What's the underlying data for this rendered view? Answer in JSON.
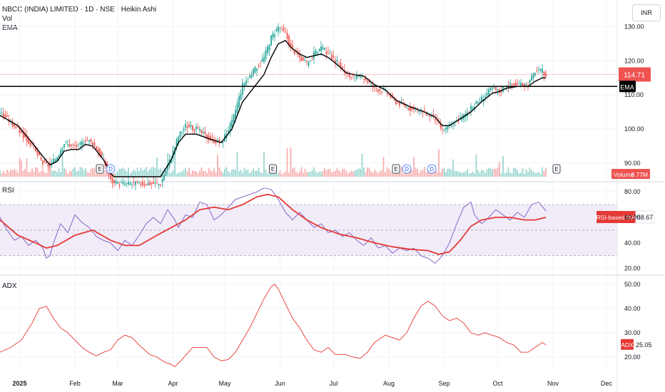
{
  "header": {
    "title": "NBCC (INDIA) LIMITED · 1D · NSE · Heikin Ashi",
    "vol_label": "Vol",
    "ema_label": "EMA",
    "currency": "INR"
  },
  "colors": {
    "up": "#26a69a",
    "down": "#ef5350",
    "ema": "#000000",
    "rsi": "#7e57c2",
    "rsi_ma": "#e53935",
    "adx": "#e53935",
    "rsi_band": "#ede7f6"
  },
  "chart_data": [
    {
      "type": "candlestick",
      "name": "price",
      "yaxis_ticks": [
        90,
        100,
        110,
        120,
        130
      ],
      "ylim": [
        86,
        132
      ],
      "xlim": [
        0,
        306
      ],
      "x_ticks": [
        {
          "label": "2025",
          "x": 11
        },
        {
          "label": "Feb",
          "x": 42
        },
        {
          "label": "Mar",
          "x": 66
        },
        {
          "label": "Apr",
          "x": 97
        },
        {
          "label": "May",
          "x": 126
        },
        {
          "label": "Jun",
          "x": 157
        },
        {
          "label": "Jul",
          "x": 187
        },
        {
          "label": "Aug",
          "x": 218
        },
        {
          "label": "Sep",
          "x": 249
        },
        {
          "label": "Oct",
          "x": 279
        },
        {
          "label": "Nov",
          "x": 310
        },
        {
          "label": "Dec",
          "x": 340
        }
      ],
      "price_path": [
        [
          0,
          105
        ],
        [
          10,
          100
        ],
        [
          18,
          95
        ],
        [
          24,
          90
        ],
        [
          28,
          89
        ],
        [
          32,
          92
        ],
        [
          36,
          96
        ],
        [
          40,
          95
        ],
        [
          44,
          95
        ],
        [
          48,
          97
        ],
        [
          52,
          96
        ],
        [
          58,
          91
        ],
        [
          62,
          85
        ],
        [
          64,
          84
        ],
        [
          90,
          84
        ],
        [
          96,
          92
        ],
        [
          100,
          98
        ],
        [
          104,
          101
        ],
        [
          110,
          100
        ],
        [
          118,
          97
        ],
        [
          124,
          96
        ],
        [
          130,
          102
        ],
        [
          136,
          113
        ],
        [
          142,
          117
        ],
        [
          148,
          121
        ],
        [
          152,
          127
        ],
        [
          156,
          130
        ],
        [
          160,
          128
        ],
        [
          163,
          124
        ],
        [
          168,
          121
        ],
        [
          172,
          119
        ],
        [
          176,
          122
        ],
        [
          180,
          124
        ],
        [
          184,
          122
        ],
        [
          190,
          119
        ],
        [
          194,
          116
        ],
        [
          198,
          115
        ],
        [
          204,
          115
        ],
        [
          210,
          112
        ],
        [
          216,
          111
        ],
        [
          222,
          108
        ],
        [
          230,
          106
        ],
        [
          238,
          105
        ],
        [
          244,
          103
        ],
        [
          248,
          99.5
        ],
        [
          252,
          101
        ],
        [
          258,
          103
        ],
        [
          264,
          106
        ],
        [
          270,
          109
        ],
        [
          276,
          112
        ],
        [
          280,
          111
        ],
        [
          284,
          113
        ],
        [
          290,
          113
        ],
        [
          296,
          113
        ],
        [
          300,
          117
        ],
        [
          304,
          117
        ],
        [
          306,
          115
        ]
      ],
      "ema_path": [
        [
          0,
          104
        ],
        [
          10,
          101
        ],
        [
          18,
          96
        ],
        [
          24,
          92
        ],
        [
          28,
          89.5
        ],
        [
          32,
          90.5
        ],
        [
          36,
          93.5
        ],
        [
          40,
          94
        ],
        [
          44,
          94
        ],
        [
          48,
          95.5
        ],
        [
          52,
          95
        ],
        [
          58,
          91
        ],
        [
          62,
          87
        ],
        [
          64,
          86
        ],
        [
          90,
          86
        ],
        [
          96,
          91
        ],
        [
          100,
          96
        ],
        [
          104,
          98.5
        ],
        [
          110,
          98.5
        ],
        [
          118,
          97
        ],
        [
          124,
          96
        ],
        [
          130,
          100
        ],
        [
          136,
          108
        ],
        [
          142,
          112
        ],
        [
          148,
          116
        ],
        [
          152,
          121
        ],
        [
          156,
          125
        ],
        [
          160,
          126
        ],
        [
          163,
          124
        ],
        [
          168,
          122
        ],
        [
          172,
          121
        ],
        [
          176,
          121.5
        ],
        [
          180,
          122
        ],
        [
          184,
          121
        ],
        [
          190,
          118.5
        ],
        [
          194,
          116.5
        ],
        [
          198,
          116
        ],
        [
          204,
          115.5
        ],
        [
          210,
          113
        ],
        [
          216,
          111.5
        ],
        [
          222,
          108.5
        ],
        [
          230,
          106.5
        ],
        [
          238,
          105
        ],
        [
          244,
          103.5
        ],
        [
          248,
          101
        ],
        [
          252,
          101
        ],
        [
          258,
          103
        ],
        [
          264,
          105
        ],
        [
          270,
          108
        ],
        [
          276,
          110.5
        ],
        [
          280,
          111
        ],
        [
          284,
          112
        ],
        [
          290,
          112.5
        ],
        [
          296,
          112.5
        ],
        [
          300,
          114
        ],
        [
          304,
          115
        ],
        [
          306,
          115
        ]
      ],
      "last_price": "114.71",
      "ema_badge": "EMA",
      "horizontal_line": 112.5,
      "price_ref_line": 116
    },
    {
      "type": "bar",
      "name": "volume",
      "badge": "Volume",
      "badge_value": "3.77M"
    },
    {
      "type": "line",
      "name": "RSI",
      "label": "RSI",
      "ylim": [
        17,
        84
      ],
      "yaxis_ticks": [
        20,
        40,
        60,
        80
      ],
      "band": [
        30,
        70
      ],
      "mid": 50,
      "rsi_path": [
        [
          0,
          60
        ],
        [
          4,
          50
        ],
        [
          8,
          42
        ],
        [
          12,
          45
        ],
        [
          16,
          38
        ],
        [
          20,
          42
        ],
        [
          24,
          36
        ],
        [
          26,
          28
        ],
        [
          28,
          30
        ],
        [
          30,
          40
        ],
        [
          34,
          55
        ],
        [
          38,
          48
        ],
        [
          42,
          62
        ],
        [
          46,
          56
        ],
        [
          50,
          52
        ],
        [
          54,
          45
        ],
        [
          58,
          42
        ],
        [
          62,
          40
        ],
        [
          66,
          34
        ],
        [
          70,
          42
        ],
        [
          74,
          38
        ],
        [
          78,
          46
        ],
        [
          82,
          55
        ],
        [
          86,
          60
        ],
        [
          90,
          55
        ],
        [
          94,
          66
        ],
        [
          98,
          58
        ],
        [
          100,
          52
        ],
        [
          104,
          62
        ],
        [
          108,
          60
        ],
        [
          112,
          72
        ],
        [
          116,
          70
        ],
        [
          120,
          58
        ],
        [
          124,
          62
        ],
        [
          128,
          68
        ],
        [
          132,
          74
        ],
        [
          136,
          76
        ],
        [
          140,
          78
        ],
        [
          144,
          80
        ],
        [
          148,
          83
        ],
        [
          152,
          82
        ],
        [
          156,
          74
        ],
        [
          160,
          64
        ],
        [
          164,
          58
        ],
        [
          168,
          64
        ],
        [
          172,
          58
        ],
        [
          176,
          52
        ],
        [
          180,
          55
        ],
        [
          184,
          48
        ],
        [
          188,
          50
        ],
        [
          192,
          45
        ],
        [
          196,
          48
        ],
        [
          200,
          42
        ],
        [
          204,
          38
        ],
        [
          208,
          44
        ],
        [
          212,
          36
        ],
        [
          216,
          38
        ],
        [
          220,
          32
        ],
        [
          224,
          36
        ],
        [
          228,
          34
        ],
        [
          232,
          36
        ],
        [
          236,
          30
        ],
        [
          240,
          28
        ],
        [
          244,
          24
        ],
        [
          248,
          30
        ],
        [
          252,
          40
        ],
        [
          256,
          55
        ],
        [
          260,
          68
        ],
        [
          264,
          72
        ],
        [
          266,
          62
        ],
        [
          270,
          55
        ],
        [
          274,
          60
        ],
        [
          278,
          66
        ],
        [
          282,
          62
        ],
        [
          286,
          58
        ],
        [
          290,
          64
        ],
        [
          294,
          60
        ],
        [
          298,
          70
        ],
        [
          302,
          72
        ],
        [
          306,
          65
        ]
      ],
      "rsi_ma_path": [
        [
          0,
          58
        ],
        [
          10,
          46
        ],
        [
          20,
          40
        ],
        [
          26,
          36
        ],
        [
          32,
          38
        ],
        [
          42,
          46
        ],
        [
          52,
          50
        ],
        [
          62,
          42
        ],
        [
          70,
          38
        ],
        [
          78,
          38
        ],
        [
          88,
          46
        ],
        [
          96,
          52
        ],
        [
          104,
          58
        ],
        [
          112,
          66
        ],
        [
          120,
          68
        ],
        [
          128,
          66
        ],
        [
          136,
          70
        ],
        [
          144,
          76
        ],
        [
          150,
          78
        ],
        [
          156,
          76
        ],
        [
          164,
          66
        ],
        [
          172,
          58
        ],
        [
          180,
          52
        ],
        [
          190,
          47
        ],
        [
          200,
          44
        ],
        [
          210,
          40
        ],
        [
          220,
          37
        ],
        [
          230,
          35
        ],
        [
          240,
          34
        ],
        [
          246,
          31
        ],
        [
          252,
          33
        ],
        [
          258,
          42
        ],
        [
          264,
          53
        ],
        [
          270,
          58
        ],
        [
          278,
          60
        ],
        [
          286,
          60
        ],
        [
          294,
          58
        ],
        [
          300,
          58
        ],
        [
          306,
          60
        ]
      ],
      "ma_badge": "RSI-based MA",
      "ma_value": "58.67"
    },
    {
      "type": "line",
      "name": "ADX",
      "label": "ADX",
      "ylim": [
        15,
        52
      ],
      "yaxis_ticks": [
        20,
        30,
        40,
        50
      ],
      "adx_path": [
        [
          0,
          22
        ],
        [
          6,
          24
        ],
        [
          12,
          27
        ],
        [
          18,
          34
        ],
        [
          22,
          40
        ],
        [
          26,
          41
        ],
        [
          30,
          36
        ],
        [
          34,
          32
        ],
        [
          38,
          30
        ],
        [
          42,
          27
        ],
        [
          46,
          24
        ],
        [
          50,
          22
        ],
        [
          54,
          20.5
        ],
        [
          58,
          22
        ],
        [
          62,
          23
        ],
        [
          66,
          27
        ],
        [
          70,
          29
        ],
        [
          74,
          28
        ],
        [
          78,
          25
        ],
        [
          84,
          21
        ],
        [
          88,
          20
        ],
        [
          92,
          18
        ],
        [
          96,
          17
        ],
        [
          98,
          16
        ],
        [
          102,
          19
        ],
        [
          108,
          24
        ],
        [
          112,
          24
        ],
        [
          116,
          24
        ],
        [
          120,
          20
        ],
        [
          124,
          18.5
        ],
        [
          128,
          19
        ],
        [
          132,
          22
        ],
        [
          136,
          27
        ],
        [
          140,
          32
        ],
        [
          144,
          38
        ],
        [
          148,
          44
        ],
        [
          152,
          49
        ],
        [
          154,
          50
        ],
        [
          156,
          48
        ],
        [
          160,
          42
        ],
        [
          164,
          36
        ],
        [
          168,
          32
        ],
        [
          172,
          27
        ],
        [
          176,
          23
        ],
        [
          180,
          22
        ],
        [
          184,
          24
        ],
        [
          188,
          21
        ],
        [
          194,
          21
        ],
        [
          198,
          20
        ],
        [
          202,
          19.5
        ],
        [
          206,
          22
        ],
        [
          210,
          26
        ],
        [
          216,
          29
        ],
        [
          220,
          28
        ],
        [
          224,
          27
        ],
        [
          228,
          30
        ],
        [
          232,
          36
        ],
        [
          236,
          41
        ],
        [
          240,
          43
        ],
        [
          244,
          41
        ],
        [
          248,
          37
        ],
        [
          252,
          35
        ],
        [
          256,
          36
        ],
        [
          260,
          34
        ],
        [
          264,
          30
        ],
        [
          268,
          29
        ],
        [
          272,
          30
        ],
        [
          276,
          29
        ],
        [
          280,
          28
        ],
        [
          284,
          26
        ],
        [
          288,
          25
        ],
        [
          292,
          22
        ],
        [
          296,
          22
        ],
        [
          300,
          24
        ],
        [
          304,
          26
        ],
        [
          306,
          25
        ]
      ],
      "badge": "ADX",
      "badge_value": "25.05"
    }
  ]
}
